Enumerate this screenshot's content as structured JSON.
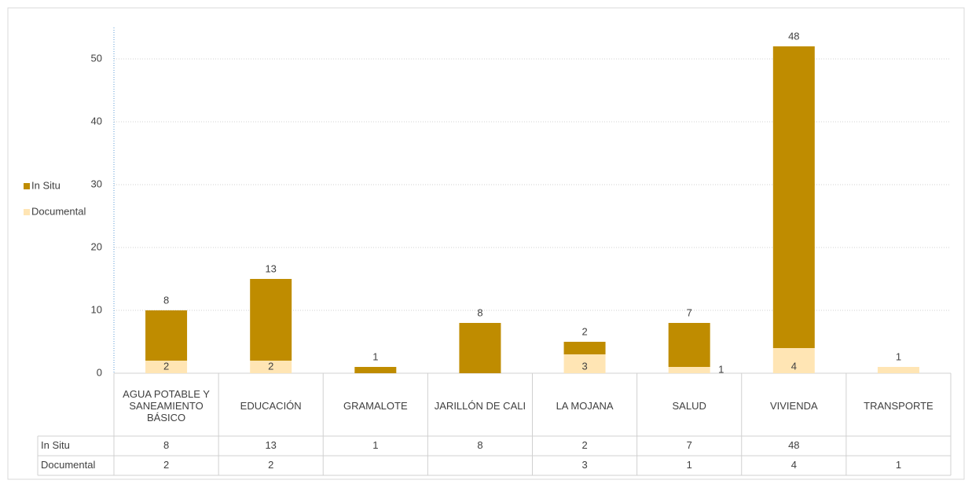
{
  "chart_data": {
    "type": "bar",
    "stacked": true,
    "categories": [
      "AGUA POTABLE Y SANEAMIENTO BÁSICO",
      "EDUCACIÓN",
      "GRAMALOTE",
      "JARILLÓN DE CALI",
      "LA MOJANA",
      "SALUD",
      "VIVIENDA",
      "TRANSPORTE"
    ],
    "series": [
      {
        "name": "Documental",
        "color": "#ffe5b4",
        "values": [
          2,
          2,
          null,
          null,
          3,
          1,
          4,
          1
        ]
      },
      {
        "name": "In Situ",
        "color": "#bf8c00",
        "values": [
          8,
          13,
          1,
          8,
          2,
          7,
          48,
          null
        ]
      }
    ],
    "ylim": [
      0,
      55
    ],
    "yticks": [
      0,
      10,
      20,
      30,
      40,
      50
    ],
    "grid": true,
    "legend": "left",
    "data_table": true
  }
}
